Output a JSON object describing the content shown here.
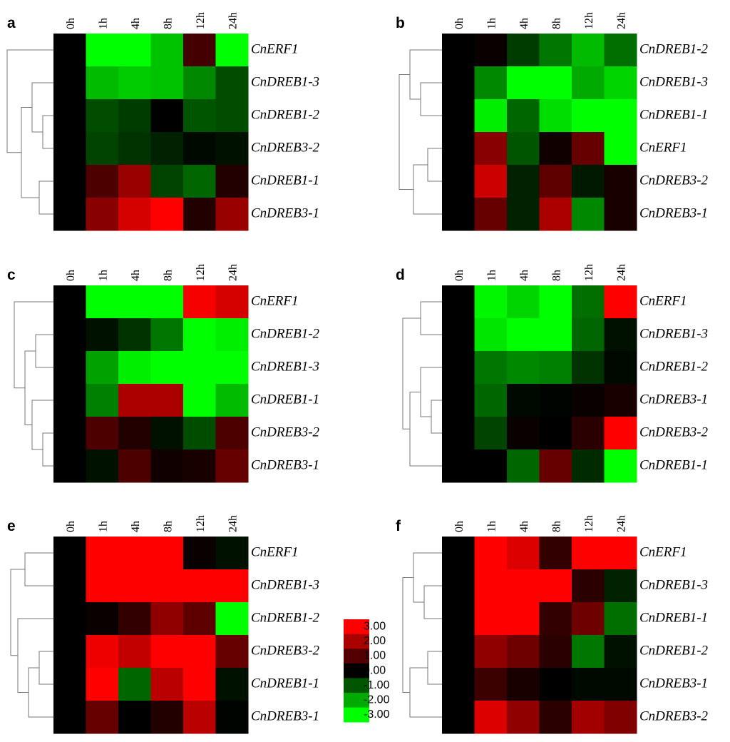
{
  "chart_data": [
    {
      "type": "heatmap",
      "title": "a",
      "x": [
        "0h",
        "1h",
        "4h",
        "8h",
        "12h",
        "24h"
      ],
      "y": [
        "CnERF1",
        "CnDREB1-3",
        "CnDREB1-2",
        "CnDREB3-2",
        "CnDREB1-1",
        "CnDREB3-1"
      ],
      "values": [
        [
          0,
          -3,
          -3,
          -2.3,
          0.8,
          -3
        ],
        [
          0,
          -2.2,
          -2.4,
          -2.3,
          -1.6,
          -0.9
        ],
        [
          0,
          -0.9,
          -0.7,
          0,
          -1,
          -0.9
        ],
        [
          0,
          -0.8,
          -0.6,
          -0.4,
          -0.1,
          -0.2
        ],
        [
          0,
          0.9,
          1.8,
          -0.8,
          -1.2,
          0.4
        ],
        [
          0,
          1.6,
          2.5,
          3,
          0.4,
          1.8
        ]
      ]
    },
    {
      "type": "heatmap",
      "title": "b",
      "x": [
        "0h",
        "1h",
        "4h",
        "8h",
        "12h",
        "24h"
      ],
      "y": [
        "CnDREB1-2",
        "CnDREB1-3",
        "CnDREB1-1",
        "CnERF1",
        "CnDREB3-2",
        "CnDREB3-1"
      ],
      "values": [
        [
          0,
          0.1,
          -0.7,
          -1.4,
          -2.2,
          -1.3
        ],
        [
          0,
          -1.6,
          -3,
          -3,
          -2,
          -2.5
        ],
        [
          0,
          -2.8,
          -1.2,
          -2.6,
          -3,
          -3
        ],
        [
          0,
          1.6,
          -1,
          0.2,
          1.2,
          -3
        ],
        [
          0,
          2.4,
          -0.4,
          1.1,
          -0.3,
          0.3
        ],
        [
          0,
          1.2,
          -0.4,
          2,
          -1.6,
          0.3
        ]
      ]
    },
    {
      "type": "heatmap",
      "title": "c",
      "x": [
        "0h",
        "1h",
        "4h",
        "8h",
        "12h",
        "24h"
      ],
      "y": [
        "CnERF1",
        "CnDREB1-2",
        "CnDREB1-3",
        "CnDREB1-1",
        "CnDREB3-2",
        "CnDREB3-1"
      ],
      "values": [
        [
          0,
          -3,
          -3,
          -3,
          2.9,
          2.5
        ],
        [
          0,
          -0.2,
          -0.6,
          -1.4,
          -3,
          -2.8
        ],
        [
          0,
          -1.9,
          -2.8,
          -3,
          -3,
          -3
        ],
        [
          0,
          -1.5,
          2,
          2,
          -3,
          -2.2
        ],
        [
          0,
          0.9,
          0.4,
          -0.2,
          -0.9,
          0.9
        ],
        [
          0,
          -0.2,
          0.9,
          0.2,
          0.3,
          1.2
        ]
      ]
    },
    {
      "type": "heatmap",
      "title": "d",
      "x": [
        "0h",
        "1h",
        "4h",
        "8h",
        "12h",
        "24h"
      ],
      "y": [
        "CnERF1",
        "CnDREB1-3",
        "CnDREB1-2",
        "CnDREB3-1",
        "CnDREB3-2",
        "CnDREB1-1"
      ],
      "values": [
        [
          0,
          -2.9,
          -2.5,
          -3,
          -1.3,
          3
        ],
        [
          0,
          -2.7,
          -3,
          -3,
          -1.2,
          -0.2
        ],
        [
          0,
          -1.4,
          -1.6,
          -1.5,
          -0.6,
          -0.1
        ],
        [
          0,
          -1.2,
          -0.1,
          -0.05,
          0.1,
          0.3
        ],
        [
          0,
          -0.8,
          0.1,
          0,
          0.5,
          3
        ],
        [
          0,
          0,
          -1.2,
          1.2,
          -0.5,
          -3
        ]
      ]
    },
    {
      "type": "heatmap",
      "title": "e",
      "x": [
        "0h",
        "1h",
        "4h",
        "8h",
        "12h",
        "24h"
      ],
      "y": [
        "CnERF1",
        "CnDREB1-3",
        "CnDREB1-2",
        "CnDREB3-2",
        "CnDREB1-1",
        "CnDREB3-1"
      ],
      "values": [
        [
          0,
          3,
          3,
          3,
          0.1,
          -0.2
        ],
        [
          0,
          3,
          3,
          3,
          3,
          3
        ],
        [
          0,
          0.1,
          0.6,
          1.7,
          1.1,
          -3
        ],
        [
          0,
          2.8,
          2.3,
          3,
          3,
          1.2
        ],
        [
          0,
          3,
          -1.2,
          2.2,
          3,
          -0.2
        ],
        [
          0,
          1.2,
          0,
          0.4,
          2.2,
          -0.05
        ]
      ]
    },
    {
      "type": "heatmap",
      "title": "f",
      "x": [
        "0h",
        "1h",
        "4h",
        "8h",
        "12h",
        "24h"
      ],
      "y": [
        "CnERF1",
        "CnDREB1-3",
        "CnDREB1-1",
        "CnDREB1-2",
        "CnDREB3-1",
        "CnDREB3-2"
      ],
      "values": [
        [
          0,
          3,
          2.6,
          0.6,
          3,
          3
        ],
        [
          0,
          3,
          3,
          3,
          0.5,
          -0.4
        ],
        [
          0,
          3,
          3,
          0.6,
          1.3,
          -1.3
        ],
        [
          0,
          1.7,
          1.3,
          0.5,
          -1.4,
          -0.2
        ],
        [
          0,
          0.7,
          0.3,
          0,
          -0.1,
          -0.1
        ],
        [
          0,
          2.6,
          1.7,
          0.5,
          1.9,
          1.5
        ]
      ]
    }
  ],
  "legend": {
    "range": [
      -3,
      3
    ],
    "colormap": [
      "#00ff00",
      "#000000",
      "#ff0000"
    ],
    "ticks": [
      {
        "value": 3,
        "label": "3.00"
      },
      {
        "value": 2,
        "label": "2.00"
      },
      {
        "value": 1,
        "label": "1.00"
      },
      {
        "value": 0,
        "label": "0.00"
      },
      {
        "value": -1,
        "label": "-1.00"
      },
      {
        "value": -2,
        "label": "-2.00"
      },
      {
        "value": -3,
        "label": "-3.00"
      }
    ]
  }
}
